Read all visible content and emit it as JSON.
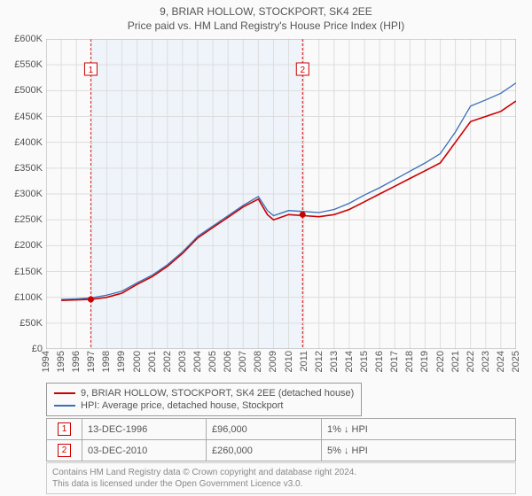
{
  "chart": {
    "type": "line",
    "title": "9, BRIAR HOLLOW, STOCKPORT, SK4 2EE",
    "subtitle": "Price paid vs. HM Land Registry's House Price Index (HPI)",
    "background_color": "#fafafa",
    "plot_background_color": "#fafafa",
    "text_color": "#555555",
    "grid_color": "#dddddd",
    "axis_color": "#aaaaaa",
    "shaded_region": {
      "x_start": 1996.95,
      "x_end": 2010.92,
      "fill": "#eef4f9",
      "border_color": "#cc0000",
      "border_dash": "3,2"
    },
    "title_fontsize": 12,
    "label_fontsize": 11,
    "x_axis": {
      "min": 1994,
      "max": 2025,
      "ticks": [
        1994,
        1995,
        1996,
        1997,
        1998,
        1999,
        2000,
        2001,
        2002,
        2003,
        2004,
        2005,
        2006,
        2007,
        2008,
        2009,
        2010,
        2011,
        2012,
        2013,
        2014,
        2015,
        2016,
        2017,
        2018,
        2019,
        2020,
        2021,
        2022,
        2023,
        2024,
        2025
      ]
    },
    "y_axis": {
      "min": 0,
      "max": 600000,
      "tick_step": 50000,
      "tick_labels": [
        "£0",
        "£50K",
        "£100K",
        "£150K",
        "£200K",
        "£250K",
        "£300K",
        "£350K",
        "£400K",
        "£450K",
        "£500K",
        "£550K",
        "£600K"
      ]
    },
    "series": [
      {
        "name": "9, BRIAR HOLLOW, STOCKPORT, SK4 2EE (detached house)",
        "color": "#cc0000",
        "line_width": 1.6,
        "x": [
          1995,
          1996,
          1997,
          1998,
          1999,
          2000,
          2001,
          2002,
          2003,
          2004,
          2005,
          2006,
          2007,
          2008,
          2008.6,
          2009,
          2010,
          2011,
          2012,
          2013,
          2014,
          2015,
          2016,
          2017,
          2018,
          2019,
          2020,
          2021,
          2022,
          2023,
          2024,
          2025
        ],
        "y": [
          94000,
          95000,
          96000,
          100000,
          108000,
          125000,
          140000,
          160000,
          185000,
          215000,
          235000,
          255000,
          275000,
          290000,
          260000,
          250000,
          260000,
          258000,
          256000,
          260000,
          270000,
          285000,
          300000,
          315000,
          330000,
          345000,
          360000,
          400000,
          440000,
          450000,
          460000,
          480000
        ]
      },
      {
        "name": "HPI: Average price, detached house, Stockport",
        "color": "#3b6fb6",
        "line_width": 1.3,
        "x": [
          1995,
          1996,
          1997,
          1998,
          1999,
          2000,
          2001,
          2002,
          2003,
          2004,
          2005,
          2006,
          2007,
          2008,
          2008.6,
          2009,
          2010,
          2011,
          2012,
          2013,
          2014,
          2015,
          2016,
          2017,
          2018,
          2019,
          2020,
          2021,
          2022,
          2023,
          2024,
          2025
        ],
        "y": [
          96000,
          97000,
          99000,
          104000,
          112000,
          128000,
          143000,
          163000,
          188000,
          218000,
          238000,
          258000,
          278000,
          295000,
          268000,
          258000,
          268000,
          266000,
          264000,
          270000,
          282000,
          298000,
          312000,
          328000,
          344000,
          360000,
          378000,
          420000,
          470000,
          482000,
          495000,
          515000
        ]
      }
    ],
    "markers": [
      {
        "label": "1",
        "x": 1996.95,
        "y": 96000,
        "color": "#cc0000",
        "badge_y": 540000
      },
      {
        "label": "2",
        "x": 2010.92,
        "y": 260000,
        "color": "#cc0000",
        "badge_y": 540000
      }
    ]
  },
  "legend": {
    "items": [
      {
        "color": "#cc0000",
        "text": "9, BRIAR HOLLOW, STOCKPORT, SK4 2EE (detached house)"
      },
      {
        "color": "#3b6fb6",
        "text": "HPI: Average price, detached house, Stockport"
      }
    ]
  },
  "marker_rows": [
    {
      "badge": "1",
      "date": "13-DEC-1996",
      "price": "£96,000",
      "delta": "1% ↓ HPI"
    },
    {
      "badge": "2",
      "date": "03-DEC-2010",
      "price": "£260,000",
      "delta": "5% ↓ HPI"
    }
  ],
  "license": {
    "line1": "Contains HM Land Registry data © Crown copyright and database right 2024.",
    "line2": "This data is licensed under the Open Government Licence v3.0."
  }
}
